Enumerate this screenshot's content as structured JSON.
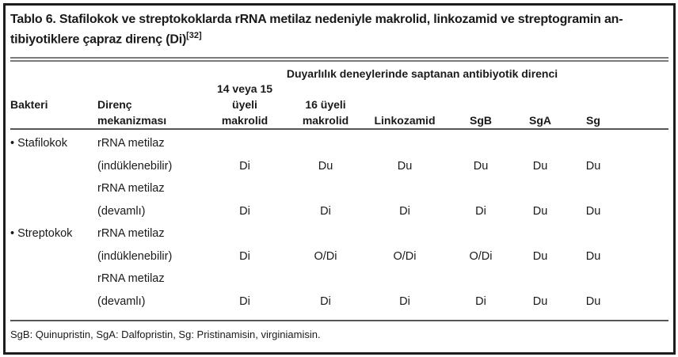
{
  "colors": {
    "background": "#ffffff",
    "border": "#1c1c1c",
    "text": "#1a1a1a",
    "rule_gray": "#7a7a7a",
    "separator_dark": "#555555"
  },
  "table": {
    "title_line1": "Tablo 6. Stafilokok ve streptokoklarda rRNA metilaz nedeniyle makrolid, linkozamid ve streptogramin an-",
    "title_line2": "tibiyotiklere çapraz direnç (Di)",
    "title_ref": "[32]",
    "group_header": "Duyarlılık deneylerinde saptanan antibiyotik direnci",
    "columns": [
      {
        "label": "Bakteri"
      },
      {
        "line1": "Direnç",
        "line2": "mekanizması"
      },
      {
        "line1": "14 veya 15",
        "line2": "üyeli",
        "line3": "makrolid"
      },
      {
        "line1": "16 üyeli",
        "line2": "makrolid"
      },
      {
        "label": "Linkozamid"
      },
      {
        "label": "SgB"
      },
      {
        "label": "SgA"
      },
      {
        "label": "Sg"
      }
    ],
    "rows": [
      {
        "bacteria": "• Stafilokok",
        "mechanism": "rRNA metilaz",
        "values": [
          "",
          "",
          "",
          "",
          "",
          ""
        ]
      },
      {
        "bacteria": "",
        "mechanism": "(indüklenebilir)",
        "values": [
          "Di",
          "Du",
          "Du",
          "Du",
          "Du",
          "Du"
        ]
      },
      {
        "bacteria": "",
        "mechanism": "rRNA metilaz",
        "values": [
          "",
          "",
          "",
          "",
          "",
          ""
        ]
      },
      {
        "bacteria": "",
        "mechanism": "(devamlı)",
        "values": [
          "Di",
          "Di",
          "Di",
          "Di",
          "Du",
          "Du"
        ]
      },
      {
        "bacteria": "• Streptokok",
        "mechanism": "rRNA metilaz",
        "values": [
          "",
          "",
          "",
          "",
          "",
          ""
        ]
      },
      {
        "bacteria": "",
        "mechanism": "(indüklenebilir)",
        "values": [
          "Di",
          "O/Di",
          "O/Di",
          "O/Di",
          "Du",
          "Du"
        ]
      },
      {
        "bacteria": "",
        "mechanism": "rRNA metilaz",
        "values": [
          "",
          "",
          "",
          "",
          "",
          ""
        ]
      },
      {
        "bacteria": "",
        "mechanism": "(devamlı)",
        "values": [
          "Di",
          "Di",
          "Di",
          "Di",
          "Du",
          "Du"
        ]
      }
    ],
    "footnote": "SgB: Quinupristin, SgA: Dalfopristin, Sg: Pristinamisin, virginiamisin."
  }
}
